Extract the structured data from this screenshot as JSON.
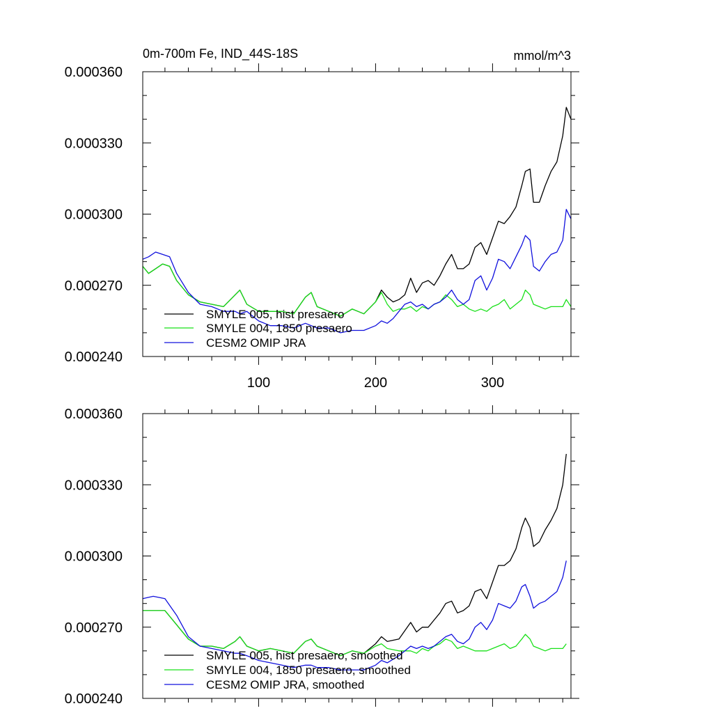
{
  "chart_data": [
    {
      "type": "line",
      "title_left": "0m-700m Fe, IND_44S-18S",
      "title_right": "mmol/m^3",
      "xlim": [
        1,
        367
      ],
      "ylim": [
        0.00024,
        0.00036
      ],
      "yticks": [
        "0.000240",
        "0.000270",
        "0.000300",
        "0.000330",
        "0.000360"
      ],
      "ytick_values": [
        0.00024,
        0.00027,
        0.0003,
        0.00033,
        0.00036
      ],
      "xticks": [
        "100",
        "200",
        "300"
      ],
      "xtick_values": [
        100,
        200,
        300
      ],
      "legend": [
        "SMYLE 005, hist presaero",
        "SMYLE 004, 1850 presaero",
        "CESM2 OMIP JRA"
      ],
      "series": [
        {
          "name": "SMYLE 005, hist presaero",
          "color": "#000000",
          "x": [
            1,
            6,
            12,
            18,
            24,
            30,
            40,
            50,
            60,
            70,
            80,
            84,
            90,
            100,
            110,
            120,
            130,
            140,
            145,
            150,
            160,
            170,
            180,
            190,
            200,
            205,
            210,
            215,
            220,
            225,
            230,
            235,
            240,
            245,
            250,
            255,
            260,
            265,
            270,
            275,
            280,
            285,
            290,
            295,
            300,
            305,
            310,
            315,
            320,
            325,
            328,
            332,
            335,
            340,
            345,
            350,
            355,
            360,
            363,
            367
          ],
          "values": [
            0.000278,
            0.000275,
            0.000277,
            0.000279,
            0.000278,
            0.000272,
            0.000266,
            0.000263,
            0.000262,
            0.000261,
            0.000266,
            0.000268,
            0.000262,
            0.000259,
            0.000259,
            0.000259,
            0.000258,
            0.000265,
            0.000267,
            0.000261,
            0.000259,
            0.000257,
            0.00026,
            0.000258,
            0.000263,
            0.000268,
            0.000265,
            0.000263,
            0.000264,
            0.000266,
            0.000273,
            0.000267,
            0.000271,
            0.000272,
            0.00027,
            0.000274,
            0.000279,
            0.000283,
            0.000277,
            0.000277,
            0.000279,
            0.000286,
            0.000288,
            0.000283,
            0.00029,
            0.000297,
            0.000296,
            0.000299,
            0.000303,
            0.000312,
            0.000318,
            0.000319,
            0.000305,
            0.000305,
            0.000312,
            0.000318,
            0.000322,
            0.000333,
            0.000345,
            0.00034
          ]
        },
        {
          "name": "SMYLE 004, 1850 presaero",
          "color": "#18e018",
          "x": [
            1,
            6,
            12,
            18,
            24,
            30,
            40,
            50,
            60,
            70,
            80,
            84,
            90,
            100,
            110,
            120,
            130,
            140,
            145,
            150,
            160,
            170,
            180,
            190,
            200,
            205,
            210,
            215,
            220,
            225,
            230,
            235,
            240,
            245,
            250,
            255,
            260,
            265,
            270,
            275,
            280,
            285,
            290,
            295,
            300,
            305,
            310,
            315,
            320,
            325,
            328,
            332,
            335,
            340,
            345,
            350,
            355,
            360,
            363,
            367
          ],
          "values": [
            0.000278,
            0.000275,
            0.000277,
            0.000279,
            0.000278,
            0.000272,
            0.000266,
            0.000263,
            0.000262,
            0.000261,
            0.000266,
            0.000268,
            0.000262,
            0.000259,
            0.000259,
            0.000259,
            0.000258,
            0.000265,
            0.000267,
            0.000261,
            0.000259,
            0.000257,
            0.00026,
            0.000258,
            0.000263,
            0.000267,
            0.000262,
            0.000259,
            0.00026,
            0.00026,
            0.000261,
            0.000259,
            0.000261,
            0.00026,
            0.000262,
            0.000263,
            0.000266,
            0.000264,
            0.000261,
            0.000262,
            0.00026,
            0.000259,
            0.00026,
            0.000259,
            0.000261,
            0.000262,
            0.000264,
            0.00026,
            0.000262,
            0.000264,
            0.000268,
            0.000266,
            0.000262,
            0.000261,
            0.00026,
            0.000261,
            0.000261,
            0.000261,
            0.000264,
            0.000261
          ]
        },
        {
          "name": "CESM2 OMIP JRA",
          "color": "#1010dd",
          "x": [
            1,
            6,
            12,
            18,
            24,
            30,
            40,
            50,
            60,
            70,
            80,
            84,
            90,
            100,
            110,
            120,
            130,
            140,
            145,
            150,
            160,
            170,
            180,
            190,
            200,
            205,
            210,
            215,
            220,
            225,
            230,
            235,
            240,
            245,
            250,
            255,
            260,
            265,
            270,
            275,
            280,
            285,
            290,
            295,
            300,
            305,
            310,
            315,
            320,
            325,
            328,
            332,
            335,
            340,
            345,
            350,
            355,
            360,
            363,
            367
          ],
          "values": [
            0.000281,
            0.000282,
            0.000284,
            0.000283,
            0.000282,
            0.000275,
            0.000267,
            0.000262,
            0.000261,
            0.000259,
            0.000259,
            0.000258,
            0.000259,
            0.000255,
            0.000253,
            0.000253,
            0.000252,
            0.000254,
            0.000253,
            0.000252,
            0.000252,
            0.00025,
            0.000251,
            0.000251,
            0.000253,
            0.000255,
            0.000254,
            0.000256,
            0.000259,
            0.000262,
            0.000263,
            0.000261,
            0.000262,
            0.00026,
            0.000262,
            0.000263,
            0.000265,
            0.000268,
            0.000264,
            0.000262,
            0.000264,
            0.000272,
            0.000274,
            0.000268,
            0.000273,
            0.000281,
            0.00028,
            0.000277,
            0.000282,
            0.000287,
            0.000291,
            0.000289,
            0.000278,
            0.000276,
            0.00028,
            0.000283,
            0.000284,
            0.000289,
            0.000302,
            0.000298
          ]
        }
      ]
    },
    {
      "type": "line",
      "xlim": [
        1,
        367
      ],
      "ylim": [
        0.00024,
        0.00036
      ],
      "yticks": [
        "0.000240",
        "0.000270",
        "0.000300",
        "0.000330",
        "0.000360"
      ],
      "ytick_values": [
        0.00024,
        0.00027,
        0.0003,
        0.00033,
        0.00036
      ],
      "xtick_values": [
        100,
        200,
        300
      ],
      "legend": [
        "SMYLE 005, hist presaero, smoothed",
        "SMYLE 004, 1850 presaero, smoothed",
        "CESM2 OMIP JRA, smoothed"
      ],
      "series": [
        {
          "name": "SMYLE 005, hist presaero, smoothed",
          "color": "#000000",
          "x": [
            1,
            10,
            20,
            30,
            40,
            50,
            60,
            70,
            80,
            84,
            90,
            100,
            110,
            120,
            130,
            140,
            145,
            150,
            160,
            170,
            180,
            190,
            200,
            205,
            210,
            220,
            230,
            235,
            240,
            245,
            250,
            255,
            260,
            265,
            270,
            275,
            280,
            285,
            290,
            295,
            300,
            305,
            310,
            315,
            320,
            325,
            328,
            332,
            335,
            340,
            345,
            350,
            355,
            360,
            363
          ],
          "values": [
            0.000277,
            0.000277,
            0.000277,
            0.000271,
            0.000265,
            0.000262,
            0.000262,
            0.000261,
            0.000264,
            0.000266,
            0.000262,
            0.00026,
            0.000261,
            0.00026,
            0.000259,
            0.000264,
            0.000265,
            0.000262,
            0.00026,
            0.000258,
            0.00026,
            0.000259,
            0.000263,
            0.000266,
            0.000264,
            0.000265,
            0.000272,
            0.000268,
            0.00027,
            0.00027,
            0.000273,
            0.000276,
            0.00028,
            0.000281,
            0.000276,
            0.000277,
            0.000279,
            0.000285,
            0.000286,
            0.000282,
            0.000289,
            0.000296,
            0.000296,
            0.000298,
            0.000303,
            0.000312,
            0.000316,
            0.000312,
            0.000304,
            0.000306,
            0.000311,
            0.000315,
            0.00032,
            0.00033,
            0.000343
          ]
        },
        {
          "name": "SMYLE 004, 1850 presaero, smoothed",
          "color": "#18e018",
          "x": [
            1,
            10,
            20,
            30,
            40,
            50,
            60,
            70,
            80,
            84,
            90,
            100,
            110,
            120,
            130,
            140,
            145,
            150,
            160,
            170,
            180,
            190,
            200,
            205,
            210,
            220,
            230,
            235,
            240,
            245,
            250,
            255,
            260,
            265,
            270,
            275,
            280,
            285,
            290,
            295,
            300,
            305,
            310,
            315,
            320,
            325,
            328,
            332,
            335,
            340,
            345,
            350,
            355,
            360,
            363
          ],
          "values": [
            0.000277,
            0.000277,
            0.000277,
            0.000271,
            0.000265,
            0.000262,
            0.000262,
            0.000261,
            0.000264,
            0.000266,
            0.000262,
            0.00026,
            0.000261,
            0.00026,
            0.000259,
            0.000264,
            0.000265,
            0.000262,
            0.00026,
            0.000258,
            0.00026,
            0.000259,
            0.000262,
            0.000263,
            0.000261,
            0.00026,
            0.00026,
            0.000259,
            0.000261,
            0.00026,
            0.000262,
            0.000263,
            0.000265,
            0.000264,
            0.000261,
            0.000262,
            0.000261,
            0.00026,
            0.00026,
            0.00026,
            0.000261,
            0.000262,
            0.000263,
            0.000261,
            0.000262,
            0.000265,
            0.000267,
            0.000265,
            0.000262,
            0.000261,
            0.00026,
            0.000261,
            0.000261,
            0.000261,
            0.000263
          ]
        },
        {
          "name": "CESM2 OMIP JRA, smoothed",
          "color": "#1010dd",
          "x": [
            1,
            10,
            20,
            30,
            40,
            50,
            60,
            70,
            80,
            84,
            90,
            100,
            110,
            120,
            130,
            140,
            145,
            150,
            160,
            170,
            180,
            190,
            200,
            205,
            210,
            220,
            230,
            235,
            240,
            245,
            250,
            255,
            260,
            265,
            270,
            275,
            280,
            285,
            290,
            295,
            300,
            305,
            310,
            315,
            320,
            325,
            328,
            332,
            335,
            340,
            345,
            350,
            355,
            360,
            363
          ],
          "values": [
            0.000282,
            0.000283,
            0.000282,
            0.000275,
            0.000266,
            0.000262,
            0.000261,
            0.00026,
            0.000259,
            0.000259,
            0.000258,
            0.000256,
            0.000255,
            0.000254,
            0.000253,
            0.000254,
            0.000254,
            0.000253,
            0.000253,
            0.000252,
            0.000252,
            0.000252,
            0.000254,
            0.000256,
            0.000255,
            0.000258,
            0.000262,
            0.000261,
            0.000262,
            0.000261,
            0.000262,
            0.000264,
            0.000266,
            0.000267,
            0.000264,
            0.000263,
            0.000265,
            0.00027,
            0.000272,
            0.000269,
            0.000273,
            0.00028,
            0.000279,
            0.000278,
            0.000281,
            0.000287,
            0.000288,
            0.000283,
            0.000278,
            0.00028,
            0.000281,
            0.000283,
            0.000285,
            0.000291,
            0.000298
          ]
        }
      ]
    }
  ]
}
